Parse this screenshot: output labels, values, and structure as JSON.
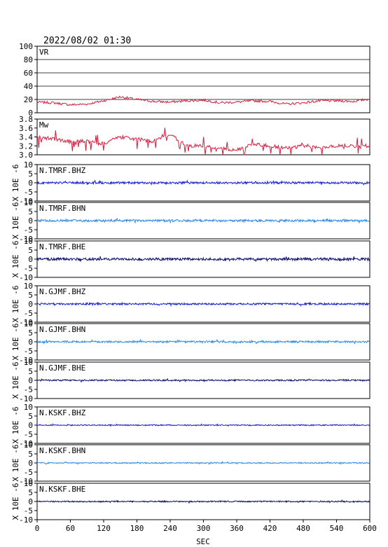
{
  "header": {
    "timestamp": "2022/08/02 01:30"
  },
  "colors": {
    "vr": "#d81b3c",
    "mw": "#d81b3c",
    "blue": "#1a22d8",
    "light_blue": "#2f8be8",
    "navy": "#0d0f6e",
    "frame": "#000000",
    "grid": "#000000"
  },
  "chart_data": [
    {
      "type": "line",
      "label": "VR",
      "ylim": [
        0,
        100
      ],
      "yticks": [
        "100",
        "80",
        "60",
        "40",
        "20",
        "0"
      ],
      "grid": true,
      "color": "#d81b3c",
      "baseline": 18,
      "x": [
        0,
        30,
        60,
        90,
        120,
        150,
        180,
        210,
        240,
        270,
        300,
        330,
        360,
        390,
        420,
        450,
        480,
        510,
        540,
        570,
        600
      ],
      "values": [
        16,
        15,
        12,
        13,
        18,
        24,
        20,
        17,
        16,
        18,
        19,
        15,
        16,
        18,
        17,
        13,
        15,
        18,
        18,
        17,
        21
      ]
    },
    {
      "type": "line",
      "label": "Mw",
      "ylim": [
        3.0,
        3.8
      ],
      "yticks": [
        "3.8",
        "3.6",
        "3.4",
        "3.2",
        "3.0"
      ],
      "grid": false,
      "color": "#d81b3c",
      "x": [
        0,
        30,
        60,
        90,
        120,
        150,
        180,
        210,
        240,
        270,
        300,
        330,
        360,
        390,
        420,
        450,
        480,
        510,
        540,
        570,
        600
      ],
      "values": [
        3.4,
        3.35,
        3.3,
        3.3,
        3.25,
        3.4,
        3.35,
        3.3,
        3.45,
        3.2,
        3.2,
        3.15,
        3.1,
        3.25,
        3.2,
        3.15,
        3.2,
        3.15,
        3.2,
        3.2,
        3.2
      ]
    },
    {
      "type": "line",
      "label": "N.TMRF.BHZ",
      "ylim": [
        -10,
        10
      ],
      "yticks": [
        "10",
        "5",
        "0",
        "-5",
        "-10"
      ],
      "ylabel": "X 10E -6",
      "color": "#1a22d8",
      "amp": 0.6
    },
    {
      "type": "line",
      "label": "N.TMRF.BHN",
      "ylim": [
        -10,
        10
      ],
      "yticks": [
        "10",
        "5",
        "0",
        "-5",
        "-10"
      ],
      "ylabel": "X 10E -6",
      "color": "#2f8be8",
      "amp": 0.6
    },
    {
      "type": "line",
      "label": "N.TMRF.BHE",
      "ylim": [
        -10,
        10
      ],
      "yticks": [
        "10",
        "5",
        "0",
        "-5",
        "-10"
      ],
      "ylabel": "X 10E -6",
      "color": "#0d0f6e",
      "amp": 0.7
    },
    {
      "type": "line",
      "label": "N.GJMF.BHZ",
      "ylim": [
        -10,
        10
      ],
      "yticks": [
        "10",
        "5",
        "0",
        "-5",
        "-10"
      ],
      "ylabel": "X 10E -6",
      "color": "#1a22d8",
      "amp": 0.5
    },
    {
      "type": "line",
      "label": "N.GJMF.BHN",
      "ylim": [
        -10,
        10
      ],
      "yticks": [
        "10",
        "5",
        "0",
        "-5",
        "-10"
      ],
      "ylabel": "X 10E -6",
      "color": "#2f8be8",
      "amp": 0.5
    },
    {
      "type": "line",
      "label": "N.GJMF.BHE",
      "ylim": [
        -10,
        10
      ],
      "yticks": [
        "10",
        "5",
        "0",
        "-5",
        "-10"
      ],
      "ylabel": "X 10E -6",
      "color": "#0d0f6e",
      "amp": 0.4
    },
    {
      "type": "line",
      "label": "N.KSKF.BHZ",
      "ylim": [
        -10,
        10
      ],
      "yticks": [
        "10",
        "5",
        "0",
        "-5",
        "-10"
      ],
      "ylabel": "X 10E -6",
      "color": "#1a22d8",
      "amp": 0.3
    },
    {
      "type": "line",
      "label": "N.KSKF.BHN",
      "ylim": [
        -10,
        10
      ],
      "yticks": [
        "10",
        "5",
        "0",
        "-5",
        "-10"
      ],
      "ylabel": "X 10E -6",
      "color": "#2f8be8",
      "amp": 0.3
    },
    {
      "type": "line",
      "label": "N.KSKF.BHE",
      "ylim": [
        -10,
        10
      ],
      "yticks": [
        "10",
        "5",
        "0",
        "-5",
        "-10"
      ],
      "ylabel": "X 10E -6",
      "color": "#0d0f6e",
      "amp": 0.35
    }
  ],
  "x_axis": {
    "xlim": [
      0,
      600
    ],
    "ticks": [
      "0",
      "60",
      "120",
      "180",
      "240",
      "300",
      "360",
      "420",
      "480",
      "540",
      "600"
    ],
    "xlabel": "SEC"
  }
}
